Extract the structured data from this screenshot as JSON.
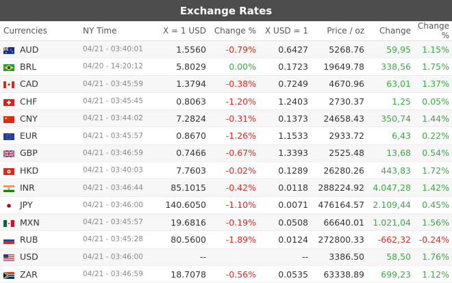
{
  "title": "Exchange Rates",
  "columns": [
    "Currencies",
    "NY Time",
    "X = 1 USD",
    "Change %",
    "X USD = 1",
    "Price / oz",
    "Change",
    "Change %"
  ],
  "rows": [
    {
      "code": "AUD",
      "time": "04/21 - 03:40:01",
      "rate": "1.5560",
      "chg_pct": "-0.79%",
      "chg_pct_dir": "down",
      "inv": "0.6427",
      "price": "5268.76",
      "change": "59,95",
      "change_dir": "up",
      "change_pct": "1.15%",
      "change_pct_dir": "up",
      "flag_icon": "australia-flag-icon"
    },
    {
      "code": "BRL",
      "time": "04/20 - 14:20:12",
      "rate": "5.8029",
      "chg_pct": "0.00%",
      "chg_pct_dir": "up",
      "inv": "0.1723",
      "price": "19649.78",
      "change": "338,56",
      "change_dir": "up",
      "change_pct": "1.75%",
      "change_pct_dir": "up",
      "flag_icon": "brazil-flag-icon"
    },
    {
      "code": "CAD",
      "time": "04/21 - 03:45:59",
      "rate": "1.3794",
      "chg_pct": "-0.38%",
      "chg_pct_dir": "down",
      "inv": "0.7249",
      "price": "4670.96",
      "change": "63,01",
      "change_dir": "up",
      "change_pct": "1.37%",
      "change_pct_dir": "up",
      "flag_icon": "canada-flag-icon"
    },
    {
      "code": "CHF",
      "time": "04/21 - 03:45:45",
      "rate": "0.8063",
      "chg_pct": "-1.20%",
      "chg_pct_dir": "down",
      "inv": "1.2403",
      "price": "2730.37",
      "change": "1,25",
      "change_dir": "up",
      "change_pct": "0.05%",
      "change_pct_dir": "up",
      "flag_icon": "switzerland-flag-icon"
    },
    {
      "code": "CNY",
      "time": "04/21 - 03:44:02",
      "rate": "7.2824",
      "chg_pct": "-0.31%",
      "chg_pct_dir": "down",
      "inv": "0.1373",
      "price": "24658.43",
      "change": "350,74",
      "change_dir": "up",
      "change_pct": "1.44%",
      "change_pct_dir": "up",
      "flag_icon": "china-flag-icon"
    },
    {
      "code": "EUR",
      "time": "04/21 - 03:45:57",
      "rate": "0.8670",
      "chg_pct": "-1.26%",
      "chg_pct_dir": "down",
      "inv": "1.1533",
      "price": "2933.72",
      "change": "6,43",
      "change_dir": "up",
      "change_pct": "0.22%",
      "change_pct_dir": "up",
      "flag_icon": "eu-flag-icon"
    },
    {
      "code": "GBP",
      "time": "04/21 - 03:46:59",
      "rate": "0.7466",
      "chg_pct": "-0.67%",
      "chg_pct_dir": "down",
      "inv": "1.3393",
      "price": "2525.48",
      "change": "13,68",
      "change_dir": "up",
      "change_pct": "0.54%",
      "change_pct_dir": "up",
      "flag_icon": "uk-flag-icon"
    },
    {
      "code": "HKD",
      "time": "04/21 - 03:40:03",
      "rate": "7.7603",
      "chg_pct": "-0.02%",
      "chg_pct_dir": "down",
      "inv": "0.1289",
      "price": "26280.26",
      "change": "443,83",
      "change_dir": "up",
      "change_pct": "1.72%",
      "change_pct_dir": "up",
      "flag_icon": "hong-kong-flag-icon"
    },
    {
      "code": "INR",
      "time": "04/21 - 03:46:44",
      "rate": "85.1015",
      "chg_pct": "-0.42%",
      "chg_pct_dir": "down",
      "inv": "0.0118",
      "price": "288224.92",
      "change": "4.047,28",
      "change_dir": "up",
      "change_pct": "1.42%",
      "change_pct_dir": "up",
      "flag_icon": "india-flag-icon"
    },
    {
      "code": "JPY",
      "time": "04/21 - 03:46:00",
      "rate": "140.6050",
      "chg_pct": "-1.10%",
      "chg_pct_dir": "down",
      "inv": "0.0071",
      "price": "476164.57",
      "change": "2.109,44",
      "change_dir": "up",
      "change_pct": "0.45%",
      "change_pct_dir": "up",
      "flag_icon": "japan-flag-icon"
    },
    {
      "code": "MXN",
      "time": "04/21 - 03:45:57",
      "rate": "19.6816",
      "chg_pct": "-0.19%",
      "chg_pct_dir": "down",
      "inv": "0.0508",
      "price": "66640.01",
      "change": "1.021,04",
      "change_dir": "up",
      "change_pct": "1.56%",
      "change_pct_dir": "up",
      "flag_icon": "mexico-flag-icon"
    },
    {
      "code": "RUB",
      "time": "04/21 - 03:45:28",
      "rate": "80.5600",
      "chg_pct": "-1.89%",
      "chg_pct_dir": "down",
      "inv": "0.0124",
      "price": "272800.33",
      "change": "-662,32",
      "change_dir": "down",
      "change_pct": "-0.24%",
      "change_pct_dir": "down",
      "flag_icon": "russia-flag-icon"
    },
    {
      "code": "USD",
      "time": "04/21 - 03:46:00",
      "rate": "--",
      "chg_pct": "",
      "chg_pct_dir": "none",
      "inv": "--",
      "price": "3386.50",
      "change": "58,50",
      "change_dir": "up",
      "change_pct": "1.76%",
      "change_pct_dir": "up",
      "flag_icon": "usa-flag-icon"
    },
    {
      "code": "ZAR",
      "time": "04/21 - 03:46:59",
      "rate": "18.7078",
      "chg_pct": "-0.56%",
      "chg_pct_dir": "down",
      "inv": "0.0535",
      "price": "63338.89",
      "change": "699,23",
      "change_dir": "up",
      "change_pct": "1.12%",
      "change_pct_dir": "up",
      "flag_icon": "south-africa-flag-icon"
    }
  ],
  "colors": {
    "header_bg": "#4d4d4d",
    "down": "#d9281f",
    "up": "#3aa844"
  }
}
